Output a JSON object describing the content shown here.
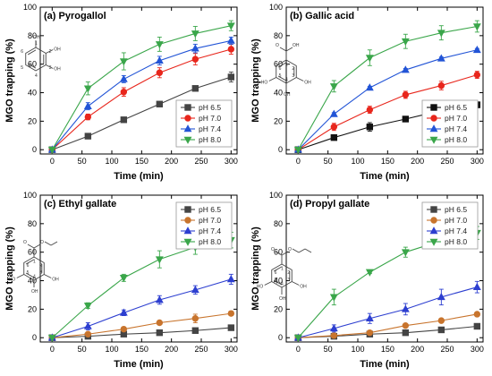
{
  "chart_data": [
    {
      "type": "line",
      "panel_label": "(a) Pyrogallol",
      "xlabel": "Time (min)",
      "ylabel": "MGO trapping (%)",
      "x": [
        0,
        60,
        120,
        180,
        240,
        300
      ],
      "xlim": [
        -20,
        310
      ],
      "ylim": [
        -3,
        100
      ],
      "xticks": [
        0,
        50,
        100,
        150,
        200,
        250,
        300
      ],
      "yticks": [
        0,
        20,
        40,
        60,
        80,
        100
      ],
      "legend_position": "bottom-right",
      "structure": {
        "name": "pyrogallol",
        "labels": [
          "OH",
          "OH",
          "OH",
          "1",
          "2",
          "3",
          "4",
          "5",
          "6"
        ]
      },
      "series": [
        {
          "name": "pH 6.5",
          "color": "#444444",
          "marker": "square",
          "values": [
            0,
            9.5,
            21,
            32,
            43,
            51
          ],
          "errors": [
            0,
            1,
            1.5,
            1.5,
            1.5,
            3.5
          ]
        },
        {
          "name": "pH 7.0",
          "color": "#e8261c",
          "marker": "circle",
          "values": [
            0,
            23,
            40.5,
            54,
            63.5,
            70.5
          ],
          "errors": [
            0,
            2,
            3,
            3.5,
            4,
            3.5
          ]
        },
        {
          "name": "pH 7.4",
          "color": "#2254d6",
          "marker": "triangle-up",
          "values": [
            0,
            30.5,
            49.5,
            62.5,
            71,
            76.5
          ],
          "errors": [
            0,
            2.5,
            2.5,
            3,
            3,
            2.5
          ]
        },
        {
          "name": "pH 8.0",
          "color": "#3aa64a",
          "marker": "triangle-down",
          "values": [
            0,
            43,
            62,
            74,
            81.5,
            87
          ],
          "errors": [
            0,
            4.5,
            6,
            5,
            5,
            3.5
          ]
        }
      ]
    },
    {
      "type": "line",
      "panel_label": "(b) Gallic acid",
      "xlabel": "Time (min)",
      "ylabel": "MGO trapping (%)",
      "x": [
        0,
        60,
        120,
        180,
        240,
        300
      ],
      "xlim": [
        -20,
        310
      ],
      "ylim": [
        -3,
        100
      ],
      "xticks": [
        0,
        50,
        100,
        150,
        200,
        250,
        300
      ],
      "yticks": [
        0,
        20,
        40,
        60,
        80,
        100
      ],
      "legend_position": "bottom-right",
      "structure": {
        "name": "gallic acid",
        "labels": [
          "O",
          "OH",
          "HO",
          "OH",
          "OH",
          "1",
          "2",
          "3",
          "4",
          "5",
          "6"
        ]
      },
      "series": [
        {
          "name": "pH 6.5",
          "color": "#111111",
          "marker": "square",
          "values": [
            0,
            8.5,
            16,
            21.5,
            27.5,
            31.5
          ],
          "errors": [
            0,
            1,
            3,
            1.5,
            2,
            2
          ]
        },
        {
          "name": "pH 7.0",
          "color": "#e8261c",
          "marker": "circle",
          "values": [
            0,
            16,
            28,
            38.5,
            45,
            52.5
          ],
          "errors": [
            0,
            2.5,
            2.5,
            2.5,
            3,
            2.5
          ]
        },
        {
          "name": "pH 7.4",
          "color": "#2254d6",
          "marker": "triangle-up",
          "values": [
            0,
            25,
            43.5,
            56,
            64,
            70
          ],
          "errors": [
            0,
            1,
            1,
            1,
            1,
            1
          ]
        },
        {
          "name": "pH 8.0",
          "color": "#3aa64a",
          "marker": "triangle-down",
          "values": [
            0,
            44.5,
            64.5,
            76,
            82,
            86.5
          ],
          "errors": [
            0,
            4,
            5.5,
            5,
            5,
            4
          ]
        }
      ]
    },
    {
      "type": "line",
      "panel_label": "(c) Ethyl gallate",
      "xlabel": "Time (min)",
      "ylabel": "MGO trapping (%)",
      "x": [
        0,
        60,
        120,
        180,
        240,
        300
      ],
      "xlim": [
        -20,
        310
      ],
      "ylim": [
        -3,
        100
      ],
      "xticks": [
        0,
        50,
        100,
        150,
        200,
        250,
        300
      ],
      "yticks": [
        0,
        20,
        40,
        60,
        80,
        100
      ],
      "legend_position": "top-right",
      "structure": {
        "name": "ethyl gallate",
        "labels": [
          "O",
          "O",
          "HO",
          "OH",
          "OH",
          "1",
          "2",
          "3",
          "4",
          "5",
          "6"
        ]
      },
      "series": [
        {
          "name": "pH 6.5",
          "color": "#444444",
          "marker": "square",
          "values": [
            0,
            1,
            2.5,
            3.5,
            5,
            7
          ],
          "errors": [
            0,
            0.5,
            0.5,
            0.5,
            0.5,
            0.5
          ]
        },
        {
          "name": "pH 7.0",
          "color": "#c8742d",
          "marker": "circle",
          "values": [
            0,
            2.5,
            6,
            10.5,
            13.5,
            17
          ],
          "errors": [
            0,
            0.5,
            1,
            1,
            3,
            1.5
          ]
        },
        {
          "name": "pH 7.4",
          "color": "#2d3fd0",
          "marker": "triangle-up",
          "values": [
            0,
            8,
            17.5,
            26.5,
            33.5,
            41
          ],
          "errors": [
            0,
            2.5,
            2,
            3,
            3,
            3.5
          ]
        },
        {
          "name": "pH 8.0",
          "color": "#3aa64a",
          "marker": "triangle-down",
          "values": [
            0,
            22.5,
            42,
            55,
            63.5,
            68.5
          ],
          "errors": [
            0,
            2,
            2.5,
            6,
            5,
            5.5
          ]
        }
      ]
    },
    {
      "type": "line",
      "panel_label": "(d) Propyl gallate",
      "xlabel": "Time (min)",
      "ylabel": "MGO trapping (%)",
      "x": [
        0,
        60,
        120,
        180,
        240,
        300
      ],
      "xlim": [
        -20,
        310
      ],
      "ylim": [
        -3,
        100
      ],
      "xticks": [
        0,
        50,
        100,
        150,
        200,
        250,
        300
      ],
      "yticks": [
        0,
        20,
        40,
        60,
        80,
        100
      ],
      "legend_position": "top-right",
      "structure": {
        "name": "propyl gallate",
        "labels": [
          "O",
          "O",
          "HO",
          "OH",
          "OH",
          "1",
          "2",
          "3",
          "4",
          "5",
          "6"
        ]
      },
      "series": [
        {
          "name": "pH 6.5",
          "color": "#444444",
          "marker": "square",
          "values": [
            0,
            1,
            2.5,
            3.5,
            5.5,
            8
          ],
          "errors": [
            0,
            0.5,
            0.5,
            0.5,
            0.5,
            0.5
          ]
        },
        {
          "name": "pH 7.0",
          "color": "#c8742d",
          "marker": "circle",
          "values": [
            0,
            1.5,
            3.5,
            8.5,
            12,
            16.5
          ],
          "errors": [
            0,
            0.5,
            1,
            1,
            1,
            1
          ]
        },
        {
          "name": "pH 7.4",
          "color": "#2d3fd0",
          "marker": "triangle-up",
          "values": [
            0,
            6.5,
            13.5,
            20,
            28.5,
            35.5
          ],
          "errors": [
            0,
            2.5,
            3.5,
            4,
            5.5,
            4
          ]
        },
        {
          "name": "pH 8.0",
          "color": "#3aa64a",
          "marker": "triangle-down",
          "values": [
            0,
            28.5,
            46,
            60,
            68,
            73.5
          ],
          "errors": [
            0,
            5.5,
            1,
            3.5,
            2,
            4.5
          ]
        }
      ]
    }
  ]
}
